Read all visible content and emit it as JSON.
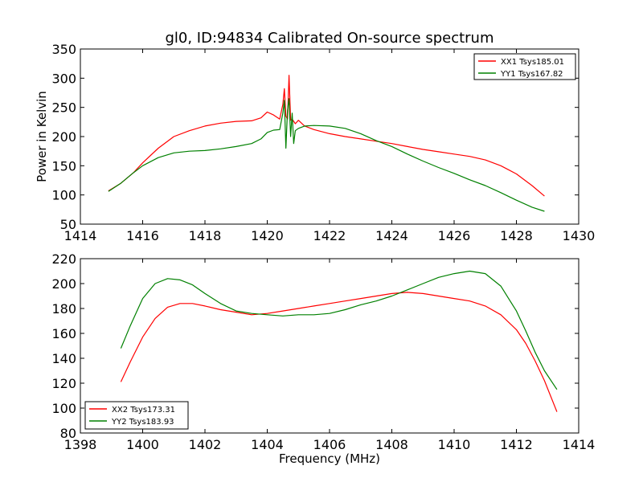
{
  "figure_title": "gl0, ID:94834 Calibrated On-source spectrum",
  "colors": {
    "xx": "#ff0000",
    "yy": "#008000",
    "axis": "#000000",
    "background": "#ffffff"
  },
  "chart_data": [
    {
      "type": "line",
      "title": "gl0, ID:94834 Calibrated On-source spectrum",
      "xlabel": "",
      "ylabel": "Power in Kelvin",
      "xlim": [
        1414,
        1430
      ],
      "ylim": [
        50,
        350
      ],
      "xticks": [
        1414,
        1416,
        1418,
        1420,
        1422,
        1424,
        1426,
        1428,
        1430
      ],
      "yticks": [
        50,
        100,
        150,
        200,
        250,
        300,
        350
      ],
      "grid": false,
      "legend_position": "top-right",
      "series": [
        {
          "name": "XX1 Tsys185.01",
          "color": "#ff0000",
          "x": [
            1414.9,
            1415.3,
            1415.7,
            1416.0,
            1416.5,
            1417.0,
            1417.5,
            1418.0,
            1418.5,
            1419.0,
            1419.5,
            1419.8,
            1420.0,
            1420.2,
            1420.4,
            1420.5,
            1420.55,
            1420.6,
            1420.65,
            1420.7,
            1420.75,
            1420.8,
            1420.9,
            1421.0,
            1421.2,
            1421.5,
            1422.0,
            1422.5,
            1423.0,
            1423.5,
            1424.0,
            1424.5,
            1425.0,
            1425.5,
            1426.0,
            1426.5,
            1427.0,
            1427.5,
            1428.0,
            1428.5,
            1428.9
          ],
          "values": [
            107,
            120,
            138,
            155,
            180,
            200,
            210,
            218,
            223,
            226,
            227,
            232,
            242,
            237,
            230,
            255,
            282,
            235,
            230,
            305,
            228,
            230,
            222,
            228,
            218,
            212,
            205,
            200,
            196,
            192,
            188,
            183,
            178,
            174,
            170,
            166,
            160,
            150,
            136,
            116,
            98
          ]
        },
        {
          "name": "YY1 Tsys167.82",
          "color": "#008000",
          "x": [
            1414.9,
            1415.3,
            1415.7,
            1416.0,
            1416.5,
            1417.0,
            1417.5,
            1418.0,
            1418.5,
            1419.0,
            1419.5,
            1419.8,
            1420.0,
            1420.2,
            1420.4,
            1420.5,
            1420.55,
            1420.6,
            1420.65,
            1420.7,
            1420.75,
            1420.8,
            1420.85,
            1420.9,
            1421.0,
            1421.2,
            1421.5,
            1422.0,
            1422.5,
            1423.0,
            1423.5,
            1424.0,
            1424.5,
            1425.0,
            1425.5,
            1426.0,
            1426.5,
            1427.0,
            1427.5,
            1428.0,
            1428.5,
            1428.9
          ],
          "values": [
            106,
            120,
            138,
            150,
            164,
            172,
            175,
            176,
            179,
            183,
            188,
            196,
            207,
            211,
            212,
            240,
            262,
            180,
            245,
            265,
            200,
            240,
            188,
            210,
            214,
            218,
            219,
            218,
            214,
            205,
            193,
            183,
            170,
            158,
            147,
            137,
            126,
            116,
            104,
            91,
            79,
            72
          ]
        }
      ]
    },
    {
      "type": "line",
      "title": "",
      "xlabel": "Frequency (MHz)",
      "ylabel": "",
      "xlim": [
        1398,
        1414
      ],
      "ylim": [
        80,
        220
      ],
      "xticks": [
        1398,
        1400,
        1402,
        1404,
        1406,
        1408,
        1410,
        1412,
        1414
      ],
      "yticks": [
        80,
        100,
        120,
        140,
        160,
        180,
        200,
        220
      ],
      "grid": false,
      "legend_position": "bottom-left",
      "series": [
        {
          "name": "XX2 Tsys173.31",
          "color": "#ff0000",
          "x": [
            1399.3,
            1399.6,
            1400.0,
            1400.4,
            1400.8,
            1401.2,
            1401.6,
            1402.0,
            1402.5,
            1403.0,
            1403.5,
            1404.0,
            1404.5,
            1405.0,
            1405.5,
            1406.0,
            1406.5,
            1407.0,
            1407.5,
            1408.0,
            1408.5,
            1409.0,
            1409.5,
            1410.0,
            1410.5,
            1411.0,
            1411.5,
            1412.0,
            1412.3,
            1412.6,
            1412.9,
            1413.3
          ],
          "values": [
            121,
            137,
            157,
            172,
            181,
            184,
            184,
            182,
            179,
            177,
            175,
            176,
            178,
            180,
            182,
            184,
            186,
            188,
            190,
            192,
            193,
            192,
            190,
            188,
            186,
            182,
            175,
            163,
            152,
            138,
            122,
            97
          ]
        },
        {
          "name": "YY2 Tsys183.93",
          "color": "#008000",
          "x": [
            1399.3,
            1399.6,
            1400.0,
            1400.4,
            1400.8,
            1401.2,
            1401.6,
            1402.0,
            1402.5,
            1403.0,
            1403.5,
            1404.0,
            1404.5,
            1405.0,
            1405.5,
            1406.0,
            1406.5,
            1407.0,
            1407.5,
            1408.0,
            1408.5,
            1409.0,
            1409.5,
            1410.0,
            1410.5,
            1411.0,
            1411.5,
            1412.0,
            1412.3,
            1412.6,
            1412.9,
            1413.3
          ],
          "values": [
            148,
            166,
            188,
            200,
            204,
            203,
            199,
            192,
            184,
            178,
            176,
            175,
            174,
            175,
            175,
            176,
            179,
            183,
            186,
            190,
            195,
            200,
            205,
            208,
            210,
            208,
            198,
            178,
            162,
            145,
            130,
            115
          ]
        }
      ]
    }
  ]
}
